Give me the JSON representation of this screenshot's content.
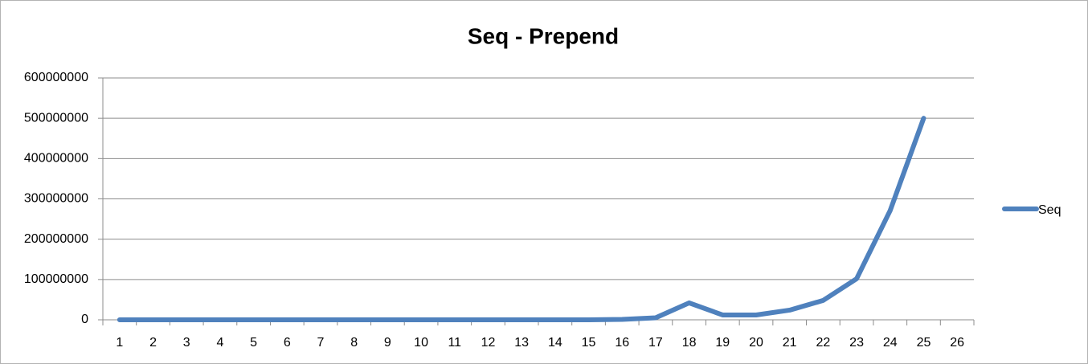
{
  "chart_data": {
    "type": "line",
    "title": "Seq - Prepend",
    "categories": [
      "1",
      "2",
      "3",
      "4",
      "5",
      "6",
      "7",
      "8",
      "9",
      "10",
      "11",
      "12",
      "13",
      "14",
      "15",
      "16",
      "17",
      "18",
      "19",
      "20",
      "21",
      "22",
      "23",
      "24",
      "25",
      "26"
    ],
    "series": [
      {
        "name": "Seq",
        "color": "#4f81bd",
        "values": [
          0,
          0,
          0,
          0,
          0,
          0,
          0,
          0,
          0,
          0,
          0,
          0,
          0,
          0,
          0,
          1000000,
          5000000,
          42000000,
          12000000,
          12000000,
          24000000,
          48000000,
          102000000,
          271000000,
          500000000,
          null
        ]
      }
    ],
    "ylim": [
      0,
      600000000
    ],
    "yticks": [
      0,
      100000000,
      200000000,
      300000000,
      400000000,
      500000000,
      600000000
    ],
    "grid": true,
    "legend": "right"
  }
}
